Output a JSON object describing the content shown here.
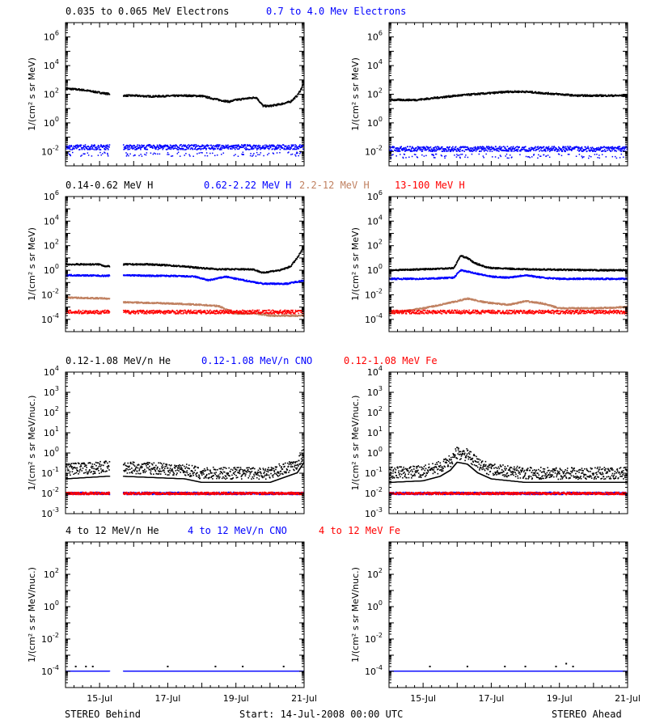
{
  "footer": {
    "left": "STEREO Behind",
    "center": "Start: 14-Jul-2008 00:00 UTC",
    "right": "STEREO Ahead"
  },
  "chart_data": [
    {
      "type": "scatter",
      "row": 1,
      "spacecraft": "STEREO Behind",
      "title_parts": [
        {
          "text": "0.035 to 0.065 MeV Electrons",
          "color": "#000000"
        },
        {
          "text": "0.7 to 4.0 Mev Electrons",
          "color": "#0000ff"
        }
      ],
      "ylabel": "1/(cm² s sr MeV)",
      "yscale": "log",
      "ylim_exp": [
        -3,
        7
      ],
      "ytick_exps": [
        -2,
        0,
        2,
        4,
        6
      ],
      "x_days": [
        14,
        21
      ],
      "series": [
        {
          "name": "0.035 to 0.065 MeV Electrons",
          "color": "#000000",
          "x": [
            14.0,
            14.5,
            15.0,
            15.2,
            15.7,
            16.0,
            16.5,
            17.0,
            17.5,
            18.0,
            18.5,
            18.8,
            19.0,
            19.3,
            19.6,
            19.8,
            20.0,
            20.3,
            20.6,
            20.8,
            20.9,
            21.0
          ],
          "y": [
            250,
            200,
            130,
            110,
            80,
            80,
            70,
            75,
            80,
            75,
            40,
            30,
            40,
            50,
            60,
            15,
            15,
            20,
            30,
            80,
            200,
            700
          ]
        },
        {
          "name": "0.7 to 4.0 Mev Electrons",
          "color": "#0000ff",
          "x": [
            14.0,
            15.2,
            15.7,
            21.0
          ],
          "y": [
            0.02,
            0.02,
            0.02,
            0.02
          ]
        }
      ],
      "gaps": [
        [
          15.3,
          15.7
        ]
      ]
    },
    {
      "type": "scatter",
      "row": 1,
      "spacecraft": "STEREO Ahead",
      "ylabel": "1/(cm² s sr MeV)",
      "yscale": "log",
      "ylim_exp": [
        -3,
        7
      ],
      "ytick_exps": [
        -2,
        0,
        2,
        4,
        6
      ],
      "x_days": [
        14,
        21
      ],
      "series": [
        {
          "name": "0.035 to 0.065 MeV Electrons",
          "color": "#000000",
          "x": [
            14.0,
            14.8,
            15.5,
            16.0,
            16.5,
            17.0,
            17.5,
            18.0,
            18.5,
            19.0,
            19.5,
            20.0,
            20.5,
            21.0
          ],
          "y": [
            40,
            40,
            60,
            80,
            100,
            120,
            150,
            150,
            120,
            100,
            80,
            80,
            80,
            80
          ]
        },
        {
          "name": "0.7 to 4.0 Mev Electrons",
          "color": "#0000ff",
          "x": [
            14.0,
            21.0
          ],
          "y": [
            0.015,
            0.015
          ]
        }
      ]
    },
    {
      "type": "scatter",
      "row": 2,
      "spacecraft": "STEREO Behind",
      "title_parts": [
        {
          "text": "0.14-0.62 MeV H",
          "color": "#000000"
        },
        {
          "text": "0.62-2.22 MeV H",
          "color": "#0000ff"
        },
        {
          "text": "2.2-12 MeV H",
          "color": "#c08060"
        },
        {
          "text": "13-100 MeV H",
          "color": "#ff0000"
        }
      ],
      "ylabel": "1/(cm² s sr MeV)",
      "yscale": "log",
      "ylim_exp": [
        -5,
        6
      ],
      "ytick_exps": [
        -4,
        -2,
        0,
        2,
        4,
        6
      ],
      "x_days": [
        14,
        21
      ],
      "series": [
        {
          "name": "0.14-0.62 MeV H",
          "color": "#000000",
          "x": [
            14.0,
            14.5,
            15.0,
            15.2,
            15.7,
            16.5,
            17.0,
            17.5,
            18.0,
            18.5,
            19.0,
            19.5,
            19.8,
            20.0,
            20.3,
            20.6,
            20.8,
            21.0
          ],
          "y": [
            3,
            3,
            3,
            2,
            3,
            3,
            2.5,
            2,
            1.5,
            1.2,
            1.2,
            1.2,
            0.6,
            0.8,
            1,
            2,
            10,
            80
          ]
        },
        {
          "name": "0.62-2.22 MeV H",
          "color": "#0000ff",
          "x": [
            14.0,
            15.2,
            15.7,
            16.5,
            17.0,
            17.8,
            18.2,
            18.7,
            19.0,
            19.6,
            19.8,
            20.5,
            21.0
          ],
          "y": [
            0.4,
            0.35,
            0.4,
            0.35,
            0.35,
            0.3,
            0.15,
            0.3,
            0.2,
            0.1,
            0.08,
            0.08,
            0.15
          ]
        },
        {
          "name": "2.2-12 MeV H",
          "color": "#c08060",
          "x": [
            14.0,
            15.2,
            15.7,
            17.0,
            18.0,
            18.5,
            19.0,
            19.6,
            20.0,
            21.0
          ],
          "y": [
            0.006,
            0.005,
            0.0025,
            0.002,
            0.0015,
            0.0012,
            0.0003,
            0.0003,
            0.0002,
            0.0002
          ]
        },
        {
          "name": "13-100 MeV H",
          "color": "#ff0000",
          "x": [
            14.0,
            15.2,
            15.7,
            21.0
          ],
          "y": [
            0.0004,
            0.0004,
            0.0004,
            0.0004
          ]
        }
      ],
      "gaps": [
        [
          15.3,
          15.7
        ]
      ]
    },
    {
      "type": "scatter",
      "row": 2,
      "spacecraft": "STEREO Ahead",
      "ylabel": "1/(cm² s sr MeV)",
      "yscale": "log",
      "ylim_exp": [
        -5,
        6
      ],
      "ytick_exps": [
        -4,
        -2,
        0,
        2,
        4,
        6
      ],
      "x_days": [
        14,
        21
      ],
      "series": [
        {
          "name": "0.14-0.62 MeV H",
          "color": "#000000",
          "x": [
            14.0,
            15.0,
            15.9,
            16.1,
            16.3,
            16.5,
            16.8,
            17.0,
            18.0,
            19.0,
            20.0,
            21.0
          ],
          "y": [
            1,
            1.2,
            1.5,
            15,
            10,
            4,
            2,
            1.5,
            1.2,
            1.1,
            1,
            1
          ]
        },
        {
          "name": "0.62-2.22 MeV H",
          "color": "#0000ff",
          "x": [
            14.0,
            15.0,
            15.9,
            16.1,
            16.5,
            17.0,
            17.5,
            18.0,
            18.5,
            19.0,
            20.0,
            21.0
          ],
          "y": [
            0.2,
            0.2,
            0.25,
            1,
            0.6,
            0.3,
            0.25,
            0.4,
            0.25,
            0.2,
            0.2,
            0.2
          ]
        },
        {
          "name": "2.2-12 MeV H",
          "color": "#c08060",
          "x": [
            14.0,
            15.0,
            15.5,
            16.0,
            16.3,
            16.8,
            17.5,
            18.0,
            18.5,
            19.0,
            20.0,
            21.0
          ],
          "y": [
            0.0003,
            0.0008,
            0.0015,
            0.003,
            0.005,
            0.0025,
            0.0015,
            0.003,
            0.002,
            0.0008,
            0.0008,
            0.001
          ]
        },
        {
          "name": "13-100 MeV H",
          "color": "#ff0000",
          "x": [
            14.0,
            21.0
          ],
          "y": [
            0.0004,
            0.0004
          ]
        }
      ]
    },
    {
      "type": "scatter",
      "row": 3,
      "spacecraft": "STEREO Behind",
      "title_parts": [
        {
          "text": "0.12-1.08 MeV/n He",
          "color": "#000000"
        },
        {
          "text": "0.12-1.08 MeV/n CNO",
          "color": "#0000ff"
        },
        {
          "text": "0.12-1.08 MeV Fe",
          "color": "#ff0000"
        }
      ],
      "ylabel": "1/(cm² s sr MeV/nuc.)",
      "yscale": "log",
      "ylim_exp": [
        -3,
        4
      ],
      "ytick_exps": [
        -3,
        -2,
        -1,
        0,
        1,
        2,
        3,
        4
      ],
      "x_days": [
        14,
        21
      ],
      "series": [
        {
          "name": "0.12-1.08 MeV/n He",
          "color": "#000000",
          "x": [
            14.0,
            15.2,
            15.7,
            17.5,
            18.0,
            19.0,
            20.0,
            20.8,
            21.0
          ],
          "y": [
            0.15,
            0.2,
            0.2,
            0.15,
            0.1,
            0.1,
            0.1,
            0.3,
            1
          ]
        },
        {
          "name": "0.12-1.08 MeV/n CNO",
          "color": "#0000ff",
          "x": [
            14.0,
            15.2,
            15.7,
            21.0
          ],
          "y": [
            0.01,
            0.01,
            0.01,
            0.01
          ]
        },
        {
          "name": "0.12-1.08 MeV Fe",
          "color": "#ff0000",
          "x": [
            14.0,
            15.2,
            15.7,
            21.0
          ],
          "y": [
            0.01,
            0.01,
            0.01,
            0.01
          ]
        }
      ],
      "gaps": [
        [
          15.3,
          15.7
        ]
      ]
    },
    {
      "type": "scatter",
      "row": 3,
      "spacecraft": "STEREO Ahead",
      "ylabel": "1/(cm² s sr MeV/nuc.)",
      "yscale": "log",
      "ylim_exp": [
        -3,
        4
      ],
      "ytick_exps": [
        -3,
        -2,
        -1,
        0,
        1,
        2,
        3,
        4
      ],
      "x_days": [
        14,
        21
      ],
      "series": [
        {
          "name": "0.12-1.08 MeV/n He",
          "color": "#000000",
          "x": [
            14.0,
            15.0,
            15.5,
            15.8,
            16.0,
            16.3,
            16.6,
            17.0,
            18.0,
            19.0,
            20.0,
            21.0
          ],
          "y": [
            0.1,
            0.12,
            0.2,
            0.4,
            1,
            0.8,
            0.3,
            0.15,
            0.1,
            0.1,
            0.1,
            0.1
          ]
        },
        {
          "name": "0.12-1.08 MeV/n CNO",
          "color": "#0000ff",
          "x": [
            14.0,
            21.0
          ],
          "y": [
            0.01,
            0.01
          ]
        },
        {
          "name": "0.12-1.08 MeV Fe",
          "color": "#ff0000",
          "x": [
            14.0,
            21.0
          ],
          "y": [
            0.01,
            0.01
          ]
        }
      ]
    },
    {
      "type": "scatter",
      "row": 4,
      "spacecraft": "STEREO Behind",
      "title_parts": [
        {
          "text": "4 to 12 MeV/n He",
          "color": "#000000"
        },
        {
          "text": "4 to 12 MeV/n CNO",
          "color": "#0000ff"
        },
        {
          "text": "4 to 12 MeV Fe",
          "color": "#ff0000"
        }
      ],
      "ylabel": "1/(cm² s sr MeV/nuc.)",
      "yscale": "log",
      "ylim_exp": [
        -5,
        4
      ],
      "ytick_exps": [
        -4,
        -2,
        0,
        2
      ],
      "x_days": [
        14,
        21
      ],
      "xticks": [
        "15-Jul",
        "17-Jul",
        "19-Jul",
        "21-Jul"
      ],
      "xtick_days": [
        15,
        17,
        19,
        21
      ],
      "series": [
        {
          "name": "4 to 12 MeV/n CNO",
          "color": "#0000ff",
          "x": [
            14.0,
            15.2,
            15.7,
            21.0
          ],
          "y": [
            0.0001,
            0.0001,
            0.0001,
            0.0001
          ]
        },
        {
          "name": "4 to 12 MeV/n He",
          "color": "#000000",
          "x": [
            14.3,
            14.6,
            14.8,
            17.0,
            18.4,
            19.2,
            20.4
          ],
          "y": [
            0.0002,
            0.0002,
            0.0002,
            0.0002,
            0.0002,
            0.0002,
            0.0002
          ]
        }
      ],
      "gaps": [
        [
          15.3,
          15.7
        ]
      ]
    },
    {
      "type": "scatter",
      "row": 4,
      "spacecraft": "STEREO Ahead",
      "ylabel": "1/(cm² s sr MeV/nuc.)",
      "yscale": "log",
      "ylim_exp": [
        -5,
        4
      ],
      "ytick_exps": [
        -4,
        -2,
        0,
        2
      ],
      "x_days": [
        14,
        21
      ],
      "xticks": [
        "15-Jul",
        "17-Jul",
        "19-Jul",
        "21-Jul"
      ],
      "xtick_days": [
        15,
        17,
        19,
        21
      ],
      "series": [
        {
          "name": "4 to 12 MeV/n CNO",
          "color": "#0000ff",
          "x": [
            14.0,
            21.0
          ],
          "y": [
            0.0001,
            0.0001
          ]
        },
        {
          "name": "4 to 12 MeV/n He",
          "color": "#000000",
          "x": [
            15.2,
            16.3,
            17.4,
            18.0,
            18.9,
            19.2,
            19.4
          ],
          "y": [
            0.0002,
            0.0002,
            0.0002,
            0.0002,
            0.0002,
            0.0003,
            0.0002
          ]
        }
      ]
    }
  ]
}
